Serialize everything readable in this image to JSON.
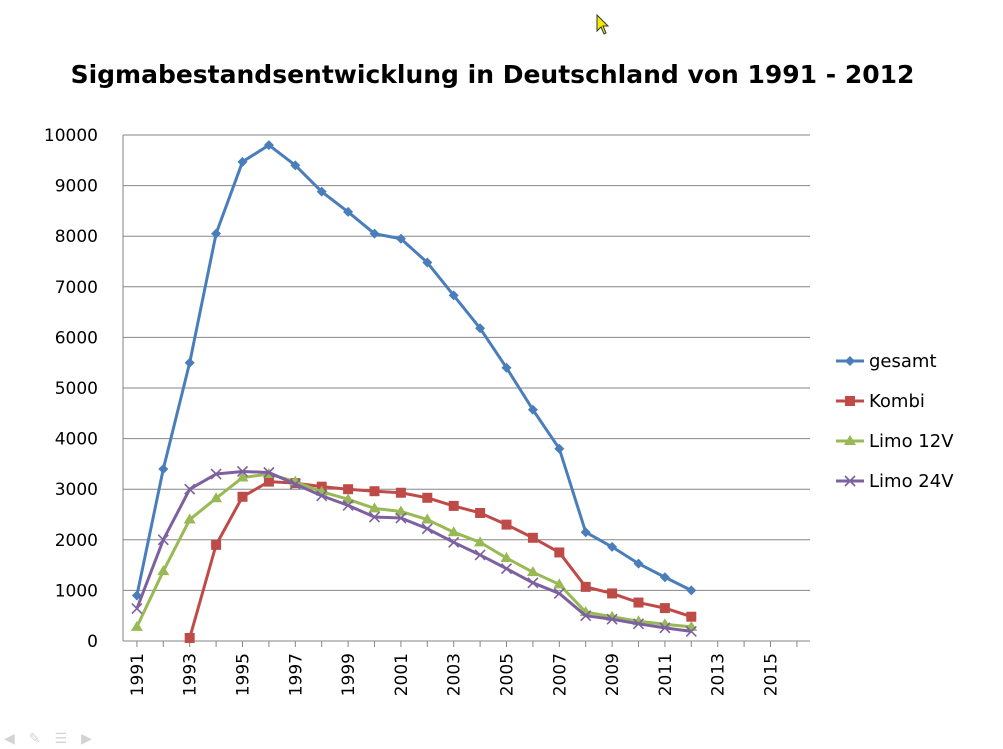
{
  "chart_data": {
    "type": "line",
    "title": "Sigmabestandsentwicklung in Deutschland von 1991 - 2012",
    "xlabel": "",
    "ylabel": "",
    "ylim": [
      0,
      10000
    ],
    "yticks": [
      "0",
      "1000",
      "2000",
      "3000",
      "4000",
      "5000",
      "6000",
      "7000",
      "8000",
      "9000",
      "10000"
    ],
    "x_range": [
      1991,
      2016
    ],
    "xtick_labels": [
      "1991",
      "1993",
      "1995",
      "1997",
      "1999",
      "2001",
      "2003",
      "2005",
      "2007",
      "2009",
      "2011",
      "2013",
      "2015"
    ],
    "grid": true,
    "legend_position": "right",
    "series": [
      {
        "name": "gesamt",
        "color": "#4A7EBB",
        "marker": "diamond",
        "x": [
          1991,
          1992,
          1993,
          1994,
          1995,
          1996,
          1997,
          1998,
          1999,
          2000,
          2001,
          2002,
          2003,
          2004,
          2005,
          2006,
          2007,
          2008,
          2009,
          2010,
          2011,
          2012
        ],
        "values": [
          900,
          3400,
          5500,
          8050,
          9470,
          9800,
          9400,
          8880,
          8480,
          8050,
          7950,
          7480,
          6830,
          6180,
          5400,
          4570,
          3800,
          2150,
          1860,
          1530,
          1260,
          1000
        ]
      },
      {
        "name": "Kombi",
        "color": "#BE4B48",
        "marker": "square",
        "x": [
          1993,
          1994,
          1995,
          1996,
          1997,
          1998,
          1999,
          2000,
          2001,
          2002,
          2003,
          2004,
          2005,
          2006,
          2007,
          2008,
          2009,
          2010,
          2011,
          2012
        ],
        "values": [
          60,
          1900,
          2850,
          3150,
          3120,
          3050,
          3000,
          2960,
          2930,
          2830,
          2670,
          2530,
          2300,
          2040,
          1750,
          1070,
          940,
          760,
          650,
          480
        ]
      },
      {
        "name": "Limo 12V",
        "color": "#98B954",
        "marker": "triangle",
        "x": [
          1991,
          1992,
          1993,
          1994,
          1995,
          1996,
          1997,
          1998,
          1999,
          2000,
          2001,
          2002,
          2003,
          2004,
          2005,
          2006,
          2007,
          2008,
          2009,
          2010,
          2011,
          2012
        ],
        "values": [
          280,
          1380,
          2400,
          2820,
          3230,
          3300,
          3150,
          2950,
          2800,
          2620,
          2560,
          2400,
          2150,
          1950,
          1640,
          1360,
          1120,
          570,
          480,
          390,
          330,
          280
        ]
      },
      {
        "name": "Limo 24V",
        "color": "#7D60A0",
        "marker": "x",
        "x": [
          1991,
          1992,
          1993,
          1994,
          1995,
          1996,
          1997,
          1998,
          1999,
          2000,
          2001,
          2002,
          2003,
          2004,
          2005,
          2006,
          2007,
          2008,
          2009,
          2010,
          2011,
          2012
        ],
        "values": [
          640,
          2000,
          3000,
          3300,
          3350,
          3330,
          3100,
          2870,
          2680,
          2450,
          2430,
          2220,
          1950,
          1700,
          1430,
          1150,
          940,
          500,
          430,
          340,
          260,
          190
        ]
      }
    ]
  }
}
